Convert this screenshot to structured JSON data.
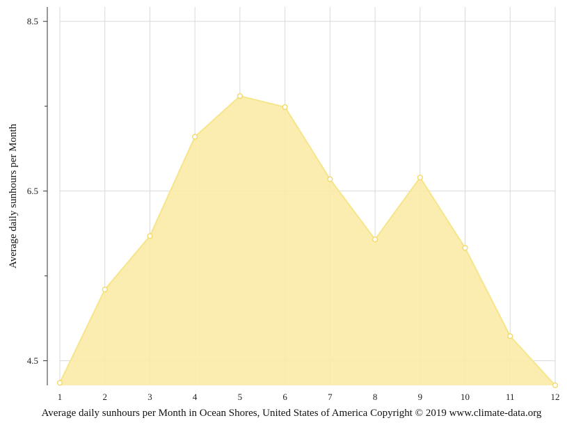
{
  "chart_data": {
    "type": "area",
    "x": [
      1,
      2,
      3,
      4,
      5,
      6,
      7,
      8,
      9,
      10,
      11,
      12
    ],
    "series": [
      {
        "values": [
          4.24,
          5.34,
          5.97,
          7.14,
          7.62,
          7.49,
          6.64,
          5.93,
          6.66,
          5.83,
          4.79,
          4.21
        ]
      }
    ],
    "x_ticks": [
      "1",
      "2",
      "3",
      "4",
      "5",
      "6",
      "7",
      "8",
      "9",
      "10",
      "11",
      "12"
    ],
    "y_ticks": [
      "4.5",
      "6.5",
      "8.5"
    ],
    "y_tick_values": [
      4.5,
      6.5,
      8.5
    ],
    "y_minor_tick_values": [
      5.5,
      7.5
    ],
    "xlim": [
      1,
      12
    ],
    "ylim": [
      4.21,
      8.67
    ],
    "ylabel": "Average daily sunhours per Month",
    "xlabel": "",
    "caption": "Average daily sunhours per Month in Ocean Shores, United States of America Copyright © 2019 www.climate-data.org",
    "grid": true,
    "legend": "none",
    "colors": {
      "fill": "#f9eba6",
      "line": "#f6e58a",
      "marker_stroke": "#f3d968",
      "marker_fill": "#ffffff",
      "grid": "#d9d9d9",
      "axis": "#333333"
    }
  }
}
